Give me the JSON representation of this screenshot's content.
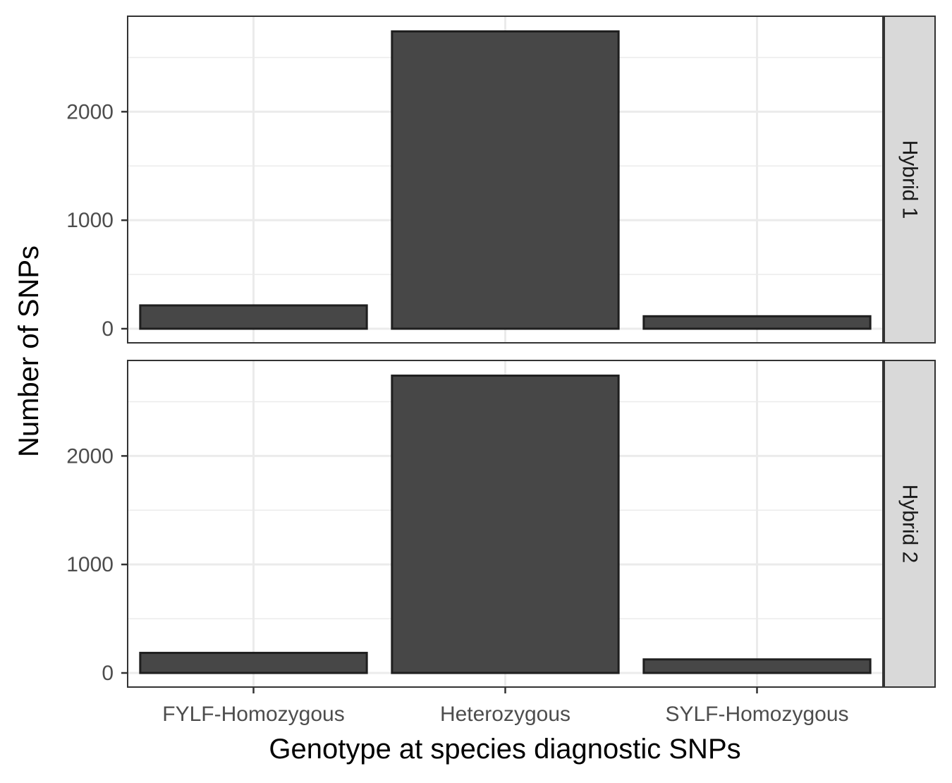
{
  "chart_data": {
    "type": "bar",
    "xlabel": "Genotype at species diagnostic SNPs",
    "ylabel": "Number of SNPs",
    "categories": [
      "FYLF-Homozygous",
      "Heterozygous",
      "SYLF-Homozygous"
    ],
    "yticks": [
      0,
      1000,
      2000
    ],
    "ylim": [
      -130,
      2880
    ],
    "grid": true,
    "facets": [
      {
        "label": "Hybrid 1",
        "values": [
          215,
          2740,
          115
        ]
      },
      {
        "label": "Hybrid 2",
        "values": [
          185,
          2740,
          125
        ]
      }
    ],
    "colors": {
      "bar_fill": "#474747",
      "bar_stroke": "#1f1f1f",
      "grid": "#ebebeb",
      "strip_fill": "#d9d9d9",
      "panel_border": "#333333"
    }
  }
}
